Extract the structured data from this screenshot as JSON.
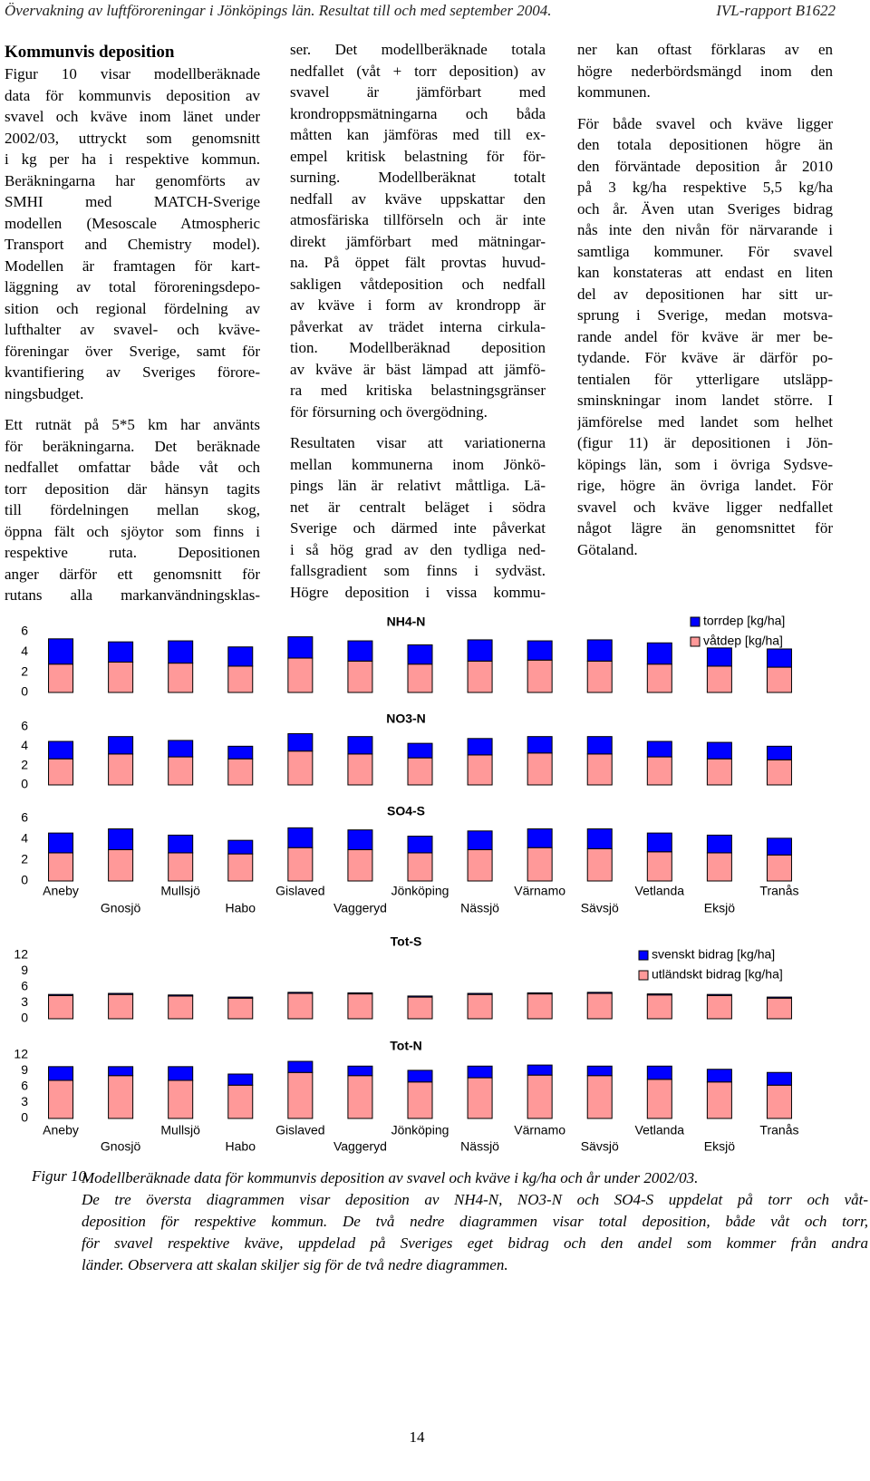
{
  "header": {
    "left": "Övervakning av luftföroreningar i Jönköpings län. Resultat till och med september 2004.",
    "right": "IVL-rapport B1622"
  },
  "columns": [
    {
      "heading": "Kommunvis deposition",
      "paragraphs": [
        [
          "Figur 10 visar modellberäknade",
          "data för kommunvis deposition av",
          "svavel och kväve inom länet under",
          "2002/03, uttryckt som genomsnitt",
          "i kg per ha i respektive kommun.",
          "Beräkningarna har genomförts av",
          "SMHI med MATCH-Sverige",
          "modellen (Mesoscale Atmospheric",
          "Transport and Chemistry model).",
          "Modellen är framtagen för kart-",
          "läggning av total föroreningsdepo-",
          "sition och regional fördelning av",
          "lufthalter av svavel- och kväve-",
          "föreningar över Sverige, samt för",
          "kvantifiering av Sveriges förore-",
          "ningsbudget."
        ],
        [
          "Ett rutnät på 5*5 km har använts",
          "för beräkningarna. Det beräknade",
          "nedfallet omfattar både våt och",
          "torr deposition där hänsyn tagits",
          "till fördelningen mellan skog,",
          "öppna fält och sjöytor som finns i",
          "respektive ruta. Depositionen",
          "anger därför ett genomsnitt för",
          "rutans alla markanvändningsklas-"
        ]
      ]
    },
    {
      "paragraphs": [
        [
          "ser. Det modellberäknade totala",
          "nedfallet (våt + torr deposition) av",
          "svavel är jämförbart med",
          "krondroppsmätningarna och båda",
          "måtten kan jämföras med till ex-",
          "empel kritisk belastning för för-",
          "surning. Modellberäknat totalt",
          "nedfall av kväve uppskattar den",
          "atmosfäriska tillförseln och är inte",
          "direkt jämförbart med mätningar-",
          "na. På öppet fält provtas huvud-",
          "sakligen våtdeposition och nedfall",
          "av kväve i form av krondropp är",
          "påverkat av trädet interna cirkula-",
          "tion. Modellberäknad deposition",
          "av kväve är bäst lämpad att jämfö-",
          "ra med kritiska belastningsgränser",
          "för försurning och övergödning."
        ],
        [
          "Resultaten visar att variationerna",
          "mellan kommunerna inom Jönkö-",
          "pings län är relativt måttliga. Lä-",
          "net är centralt beläget i södra",
          "Sverige och därmed inte påverkat",
          "i så hög grad av den tydliga ned-",
          "fallsgradient som finns i sydväst.",
          "Högre deposition i vissa kommu-"
        ]
      ]
    },
    {
      "paragraphs": [
        [
          "ner kan oftast förklaras av en",
          "högre nederbördsmängd inom den",
          "kommunen."
        ],
        [
          "För både svavel och kväve ligger",
          "den totala depositionen högre än",
          "den förväntade deposition år 2010",
          "på 3 kg/ha respektive 5,5 kg/ha",
          "och år. Även utan Sveriges bidrag",
          "nås inte den nivån för närvarande i",
          "samtliga kommuner. För svavel",
          "kan konstateras att endast en liten",
          "del av depositionen har sitt ur-",
          "sprung i Sverige, medan motsva-",
          "rande andel för kväve är mer be-",
          "tydande. För kväve är därför po-",
          "tentialen för ytterligare utsläpp-",
          "sminskningar inom landet större. I",
          "jämförelse med landet som helhet",
          "(figur 11) är depositionen i Jön-",
          "köpings län, som i övriga Sydsve-",
          "rige, högre än övriga landet. För",
          "svavel och kväve ligger nedfallet",
          "något lägre än genomsnittet för",
          "Götaland."
        ]
      ]
    }
  ],
  "chart_data": [
    {
      "type": "bar",
      "stacked": true,
      "title": "NH4-N",
      "ylim": [
        0,
        6
      ],
      "yticks": [
        0,
        2,
        4,
        6
      ],
      "series": [
        {
          "name": "våtdep [kg/ha]",
          "color": "#ff9999",
          "values": [
            2.8,
            3.0,
            2.9,
            2.6,
            3.4,
            3.1,
            2.8,
            3.1,
            3.2,
            3.1,
            2.8,
            2.6,
            2.5
          ]
        },
        {
          "name": "torrdep [kg/ha]",
          "color": "#0000ff",
          "values": [
            2.5,
            2.0,
            2.2,
            1.9,
            2.1,
            2.0,
            1.9,
            2.1,
            1.9,
            2.1,
            2.1,
            1.8,
            1.8
          ]
        }
      ]
    },
    {
      "type": "bar",
      "stacked": true,
      "title": "NO3-N",
      "ylim": [
        0,
        6
      ],
      "yticks": [
        0,
        2,
        4,
        6
      ],
      "series": [
        {
          "color": "#ff9999",
          "values": [
            2.7,
            3.2,
            2.9,
            2.7,
            3.5,
            3.2,
            2.8,
            3.1,
            3.3,
            3.2,
            2.9,
            2.7,
            2.6
          ]
        },
        {
          "color": "#0000ff",
          "values": [
            1.8,
            1.8,
            1.7,
            1.3,
            1.8,
            1.8,
            1.5,
            1.7,
            1.7,
            1.8,
            1.6,
            1.7,
            1.4
          ]
        }
      ]
    },
    {
      "type": "bar",
      "stacked": true,
      "title": "SO4-S",
      "ylim": [
        0,
        6
      ],
      "yticks": [
        0,
        2,
        4,
        6
      ],
      "categories": [
        "Aneby",
        "Gnosjö",
        "Mullsjö",
        "Habo",
        "Gislaved",
        "Vaggeryd",
        "Jönköping",
        "Nässjö",
        "Värnamo",
        "Sävsjö",
        "Vetlanda",
        "Eksjö",
        "Tranås"
      ],
      "series": [
        {
          "color": "#ff9999",
          "values": [
            2.7,
            3.0,
            2.7,
            2.6,
            3.2,
            3.0,
            2.7,
            3.0,
            3.2,
            3.1,
            2.8,
            2.7,
            2.5
          ]
        },
        {
          "color": "#0000ff",
          "values": [
            1.9,
            2.0,
            1.7,
            1.3,
            1.9,
            1.9,
            1.6,
            1.8,
            1.8,
            1.9,
            1.8,
            1.7,
            1.6
          ]
        }
      ]
    },
    {
      "type": "bar",
      "stacked": true,
      "title": "Tot-S",
      "ylim": [
        0,
        12
      ],
      "yticks": [
        0,
        3,
        6,
        9,
        12
      ],
      "series": [
        {
          "name": "utländskt bidrag [kg/ha]",
          "color": "#ff9999",
          "values": [
            4.4,
            4.6,
            4.3,
            3.9,
            4.8,
            4.7,
            4.1,
            4.6,
            4.7,
            4.8,
            4.5,
            4.4,
            3.9
          ]
        },
        {
          "name": "svenskt bidrag [kg/ha]",
          "color": "#0000ff",
          "values": [
            0.2,
            0.2,
            0.2,
            0.2,
            0.2,
            0.2,
            0.2,
            0.2,
            0.2,
            0.2,
            0.2,
            0.2,
            0.2
          ]
        }
      ]
    },
    {
      "type": "bar",
      "stacked": true,
      "title": "Tot-N",
      "ylim": [
        0,
        12
      ],
      "yticks": [
        0,
        3,
        6,
        9,
        12
      ],
      "categories": [
        "Aneby",
        "Gnosjö",
        "Mullsjö",
        "Habo",
        "Gislaved",
        "Vaggeryd",
        "Jönköping",
        "Nässjö",
        "Värnamo",
        "Sävsjö",
        "Vetlanda",
        "Eksjö",
        "Tranås"
      ],
      "series": [
        {
          "color": "#ff9999",
          "values": [
            7.2,
            8.1,
            7.2,
            6.3,
            8.7,
            8.1,
            6.9,
            7.7,
            8.2,
            8.1,
            7.4,
            6.9,
            6.3
          ]
        },
        {
          "color": "#0000ff",
          "values": [
            2.6,
            1.7,
            2.6,
            2.1,
            2.1,
            1.8,
            2.2,
            2.2,
            1.9,
            1.8,
            2.5,
            2.4,
            2.4
          ]
        }
      ]
    }
  ],
  "caption": {
    "label": "Figur 10.",
    "lines": [
      "Modellberäknade data för kommunvis deposition av svavel och kväve i kg/ha och år under 2002/03.",
      "De tre översta diagrammen visar deposition av NH4-N, NO3-N och SO4-S uppdelat på torr och våt-",
      "deposition för respektive kommun. De två nedre diagrammen visar total deposition, både våt och torr,",
      "för svavel respektive kväve, uppdelad på Sveriges eget bidrag och den andel som kommer från andra",
      "länder. Observera att skalan skiljer sig för de två nedre diagrammen."
    ]
  },
  "page_number": "14"
}
